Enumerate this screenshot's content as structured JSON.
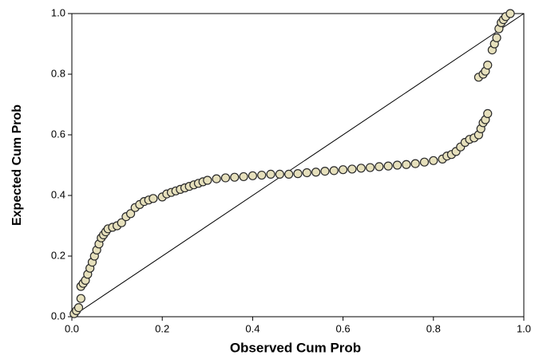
{
  "chart_data": {
    "type": "scatter",
    "x_label": "Observed Cum Prob",
    "y_label": "Expected Cum Prob",
    "xlim": [
      0,
      1
    ],
    "ylim": [
      0,
      1
    ],
    "xticks": [
      {
        "value": 0,
        "label": "0.0"
      },
      0.2,
      0.4,
      0.6,
      0.8,
      {
        "value": 1,
        "label": "1.0"
      }
    ],
    "yticks": [
      {
        "value": 0,
        "label": "0.0"
      },
      0.2,
      0.4,
      0.6,
      0.8,
      {
        "value": 1,
        "label": "1.0"
      }
    ],
    "reference_line": true,
    "series": [
      {
        "color": "#e6e0bc",
        "x": [
          0.005,
          0.01,
          0.015,
          0.02,
          0.02,
          0.025,
          0.03,
          0.035,
          0.04,
          0.045,
          0.05,
          0.055,
          0.06,
          0.065,
          0.07,
          0.075,
          0.08,
          0.09,
          0.1,
          0.11,
          0.12,
          0.13,
          0.14,
          0.15,
          0.16,
          0.17,
          0.18,
          0.2,
          0.21,
          0.22,
          0.23,
          0.24,
          0.25,
          0.26,
          0.27,
          0.28,
          0.29,
          0.3,
          0.32,
          0.34,
          0.36,
          0.38,
          0.4,
          0.42,
          0.44,
          0.46,
          0.48,
          0.5,
          0.52,
          0.54,
          0.56,
          0.58,
          0.6,
          0.62,
          0.64,
          0.66,
          0.68,
          0.7,
          0.72,
          0.74,
          0.76,
          0.78,
          0.8,
          0.82,
          0.83,
          0.84,
          0.85,
          0.86,
          0.87,
          0.88,
          0.89,
          0.9,
          0.905,
          0.91,
          0.915,
          0.92,
          0.9,
          0.91,
          0.915,
          0.92,
          0.93,
          0.935,
          0.94,
          0.945,
          0.95,
          0.955,
          0.96,
          0.97
        ],
        "values": [
          0.01,
          0.02,
          0.03,
          0.06,
          0.1,
          0.11,
          0.12,
          0.14,
          0.16,
          0.18,
          0.2,
          0.22,
          0.24,
          0.26,
          0.27,
          0.28,
          0.29,
          0.295,
          0.3,
          0.31,
          0.33,
          0.34,
          0.36,
          0.37,
          0.38,
          0.385,
          0.39,
          0.395,
          0.405,
          0.41,
          0.415,
          0.42,
          0.425,
          0.43,
          0.435,
          0.44,
          0.445,
          0.45,
          0.455,
          0.458,
          0.46,
          0.462,
          0.465,
          0.467,
          0.47,
          0.47,
          0.47,
          0.472,
          0.475,
          0.477,
          0.48,
          0.482,
          0.485,
          0.487,
          0.49,
          0.492,
          0.495,
          0.497,
          0.5,
          0.502,
          0.505,
          0.51,
          0.515,
          0.52,
          0.53,
          0.535,
          0.545,
          0.56,
          0.575,
          0.585,
          0.59,
          0.6,
          0.62,
          0.64,
          0.65,
          0.67,
          0.79,
          0.8,
          0.81,
          0.83,
          0.88,
          0.9,
          0.92,
          0.95,
          0.97,
          0.98,
          0.99,
          1.0
        ]
      }
    ]
  }
}
